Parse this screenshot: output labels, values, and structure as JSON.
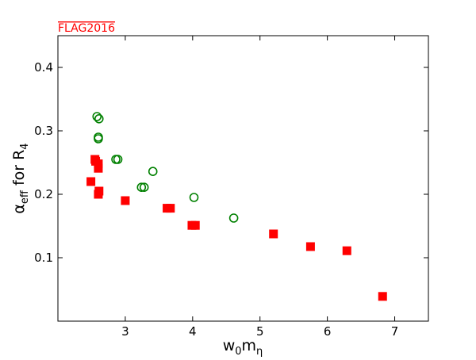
{
  "chart_data": {
    "type": "scatter",
    "title": "FLAG2016",
    "x_label": {
      "base": "w",
      "sub": "0",
      "base2": "m",
      "sub2": "η"
    },
    "y_label": {
      "base": "α",
      "sub": "eff",
      "base2": " for R",
      "sub2": "4"
    },
    "xlim": [
      2,
      7.5
    ],
    "xticks": [
      3,
      4,
      5,
      6,
      7
    ],
    "ylim": [
      0,
      0.45
    ],
    "yticks": [
      0.1,
      0.2,
      0.3,
      0.4
    ],
    "series": [
      {
        "color": "#ff0000",
        "marker": "square",
        "x": [
          2.49,
          2.55,
          2.56,
          2.6,
          2.6,
          2.61,
          2.6,
          3.0,
          3.62,
          3.67,
          3.99,
          4.04,
          5.2,
          5.75,
          6.29,
          6.82
        ],
        "values": [
          0.22,
          0.255,
          0.252,
          0.248,
          0.241,
          0.205,
          0.2,
          0.19,
          0.178,
          0.178,
          0.151,
          0.151,
          0.1375,
          0.1175,
          0.111,
          0.039
        ]
      },
      {
        "color": "#008000",
        "marker": "circle",
        "x": [
          2.58,
          2.61,
          2.6,
          2.6,
          2.86,
          2.89,
          3.24,
          3.28,
          3.41,
          4.02,
          4.61
        ],
        "values": [
          0.3225,
          0.319,
          0.29,
          0.2875,
          0.255,
          0.255,
          0.211,
          0.211,
          0.236,
          0.195,
          0.1625
        ]
      }
    ]
  }
}
